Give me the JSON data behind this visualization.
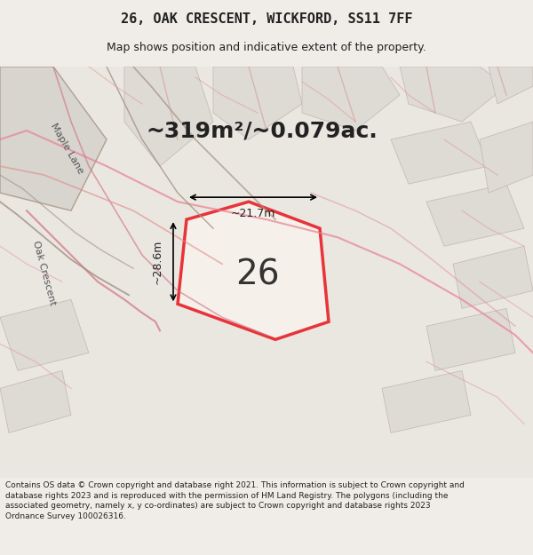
{
  "title_line1": "26, OAK CRESCENT, WICKFORD, SS11 7FF",
  "title_line2": "Map shows position and indicative extent of the property.",
  "area_text": "~319m²/~0.079ac.",
  "number_label": "26",
  "dim_height": "~28.6m",
  "dim_width": "~21.7m",
  "street_label1": "Maple Lane",
  "street_label2": "Oak Crescent",
  "footer_text": "Contains OS data © Crown copyright and database right 2021. This information is subject to Crown copyright and database rights 2023 and is reproduced with the permission of HM Land Registry. The polygons (including the associated geometry, namely x, y co-ordinates) are subject to Crown copyright and database rights 2023 Ordnance Survey 100026316.",
  "bg_color": "#f0ede8",
  "map_bg": "#f0ede8",
  "property_fill": "#f5f0eb",
  "property_edge": "#e8333a",
  "road_color_light": "#e8a0a0",
  "road_color_dark": "#b0a090",
  "fig_width": 6.0,
  "fig_height": 6.25,
  "title_fontsize": 11,
  "subtitle_fontsize": 9,
  "area_fontsize": 18,
  "number_fontsize": 28,
  "dim_fontsize": 9,
  "street_fontsize": 8,
  "footer_fontsize": 6.5
}
